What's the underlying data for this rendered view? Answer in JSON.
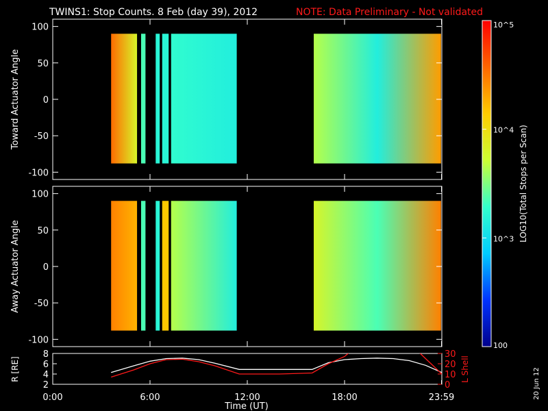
{
  "header": {
    "title": "TWINS1: Stop Counts.  8 Feb (day  39), 2012",
    "note": "NOTE: Data Preliminary - Not validated",
    "note_color": "#ff1a1a"
  },
  "side_date": "20 Jun 12",
  "colorbar": {
    "label": "LOG10(Total Stops per Scan)",
    "ticks": [
      "10^5",
      "10^4",
      "10^3",
      "100"
    ],
    "tick_values": [
      100000,
      10000,
      1000,
      100
    ],
    "range": [
      100,
      100000
    ],
    "colormap": [
      "#00008b",
      "#0033ff",
      "#00ccff",
      "#33ffcc",
      "#ccff33",
      "#ffcc00",
      "#ff6600",
      "#ff0000"
    ]
  },
  "chart_data": [
    {
      "type": "heatmap",
      "name": "toward",
      "ylabel": "Toward Actuator Angle",
      "ylim": [
        -110,
        110
      ],
      "yticks": [
        100,
        50,
        0,
        -50,
        -100
      ],
      "xlim": [
        0,
        24
      ],
      "data_ylim": [
        -88,
        90
      ],
      "segments": [
        {
          "start": 3.6,
          "end": 5.2,
          "profile": [
            0.85,
            0.6
          ]
        },
        {
          "start": 5.45,
          "end": 5.72,
          "profile": [
            0.45,
            0.45
          ]
        },
        {
          "start": 6.35,
          "end": 6.6,
          "profile": [
            0.4,
            0.4
          ]
        },
        {
          "start": 6.75,
          "end": 7.15,
          "profile": [
            0.4,
            0.4
          ]
        },
        {
          "start": 7.3,
          "end": 11.35,
          "profile": [
            0.42,
            0.38
          ]
        },
        {
          "start": 16.1,
          "end": 23.95,
          "profile": [
            0.55,
            0.38,
            0.78
          ]
        }
      ]
    },
    {
      "type": "heatmap",
      "name": "away",
      "ylabel": "Away Actuator Angle",
      "ylim": [
        -110,
        110
      ],
      "yticks": [
        100,
        50,
        0,
        -50,
        -100
      ],
      "xlim": [
        0,
        24
      ],
      "data_ylim": [
        -88,
        90
      ],
      "segments": [
        {
          "start": 3.6,
          "end": 5.2,
          "profile": [
            0.82,
            0.75
          ]
        },
        {
          "start": 5.45,
          "end": 5.72,
          "profile": [
            0.45,
            0.45
          ]
        },
        {
          "start": 6.35,
          "end": 6.6,
          "profile": [
            0.4,
            0.4
          ]
        },
        {
          "start": 6.75,
          "end": 7.15,
          "profile": [
            0.72,
            0.72
          ]
        },
        {
          "start": 7.3,
          "end": 11.35,
          "profile": [
            0.55,
            0.38
          ]
        },
        {
          "start": 16.1,
          "end": 23.95,
          "profile": [
            0.6,
            0.45,
            0.82
          ]
        }
      ]
    },
    {
      "type": "line",
      "name": "ephemeris",
      "xlabel": "Time (UT)",
      "xticks": [
        "0:00",
        "6:00",
        "12:00",
        "18:00",
        "23:59"
      ],
      "xtick_values": [
        0,
        6,
        12,
        18,
        23.98
      ],
      "xlim": [
        0,
        24
      ],
      "left_axis": {
        "label": "R [RE]",
        "ylim": [
          2,
          8
        ],
        "yticks": [
          2,
          4,
          6,
          8
        ]
      },
      "right_axis": {
        "label": "L Shell",
        "ylim": [
          0,
          30
        ],
        "yticks": [
          0,
          10,
          20,
          30
        ],
        "color": "#ff1a1a"
      },
      "series": [
        {
          "axis": "left",
          "color": "#ffffff",
          "x": [
            3.6,
            5,
            6,
            7,
            8,
            9,
            10,
            11.5,
            12,
            14,
            16,
            17,
            18,
            19,
            20,
            21,
            22,
            23,
            24
          ],
          "y": [
            4.3,
            5.6,
            6.5,
            7.0,
            7.1,
            6.8,
            6.1,
            4.9,
            4.9,
            4.9,
            4.9,
            6.2,
            6.8,
            7.0,
            7.1,
            7.0,
            6.6,
            5.7,
            4.3
          ]
        },
        {
          "axis": "right",
          "color": "#ff1a1a",
          "x": [
            3.6,
            5,
            6,
            7,
            8,
            9,
            10,
            11.5,
            12,
            14,
            16,
            17,
            18,
            18.3,
            22.6,
            23,
            24
          ],
          "y": [
            7,
            14,
            20,
            24,
            24.5,
            22,
            18,
            10,
            10,
            10,
            11,
            20,
            27,
            31,
            31,
            25,
            10
          ]
        }
      ]
    }
  ]
}
